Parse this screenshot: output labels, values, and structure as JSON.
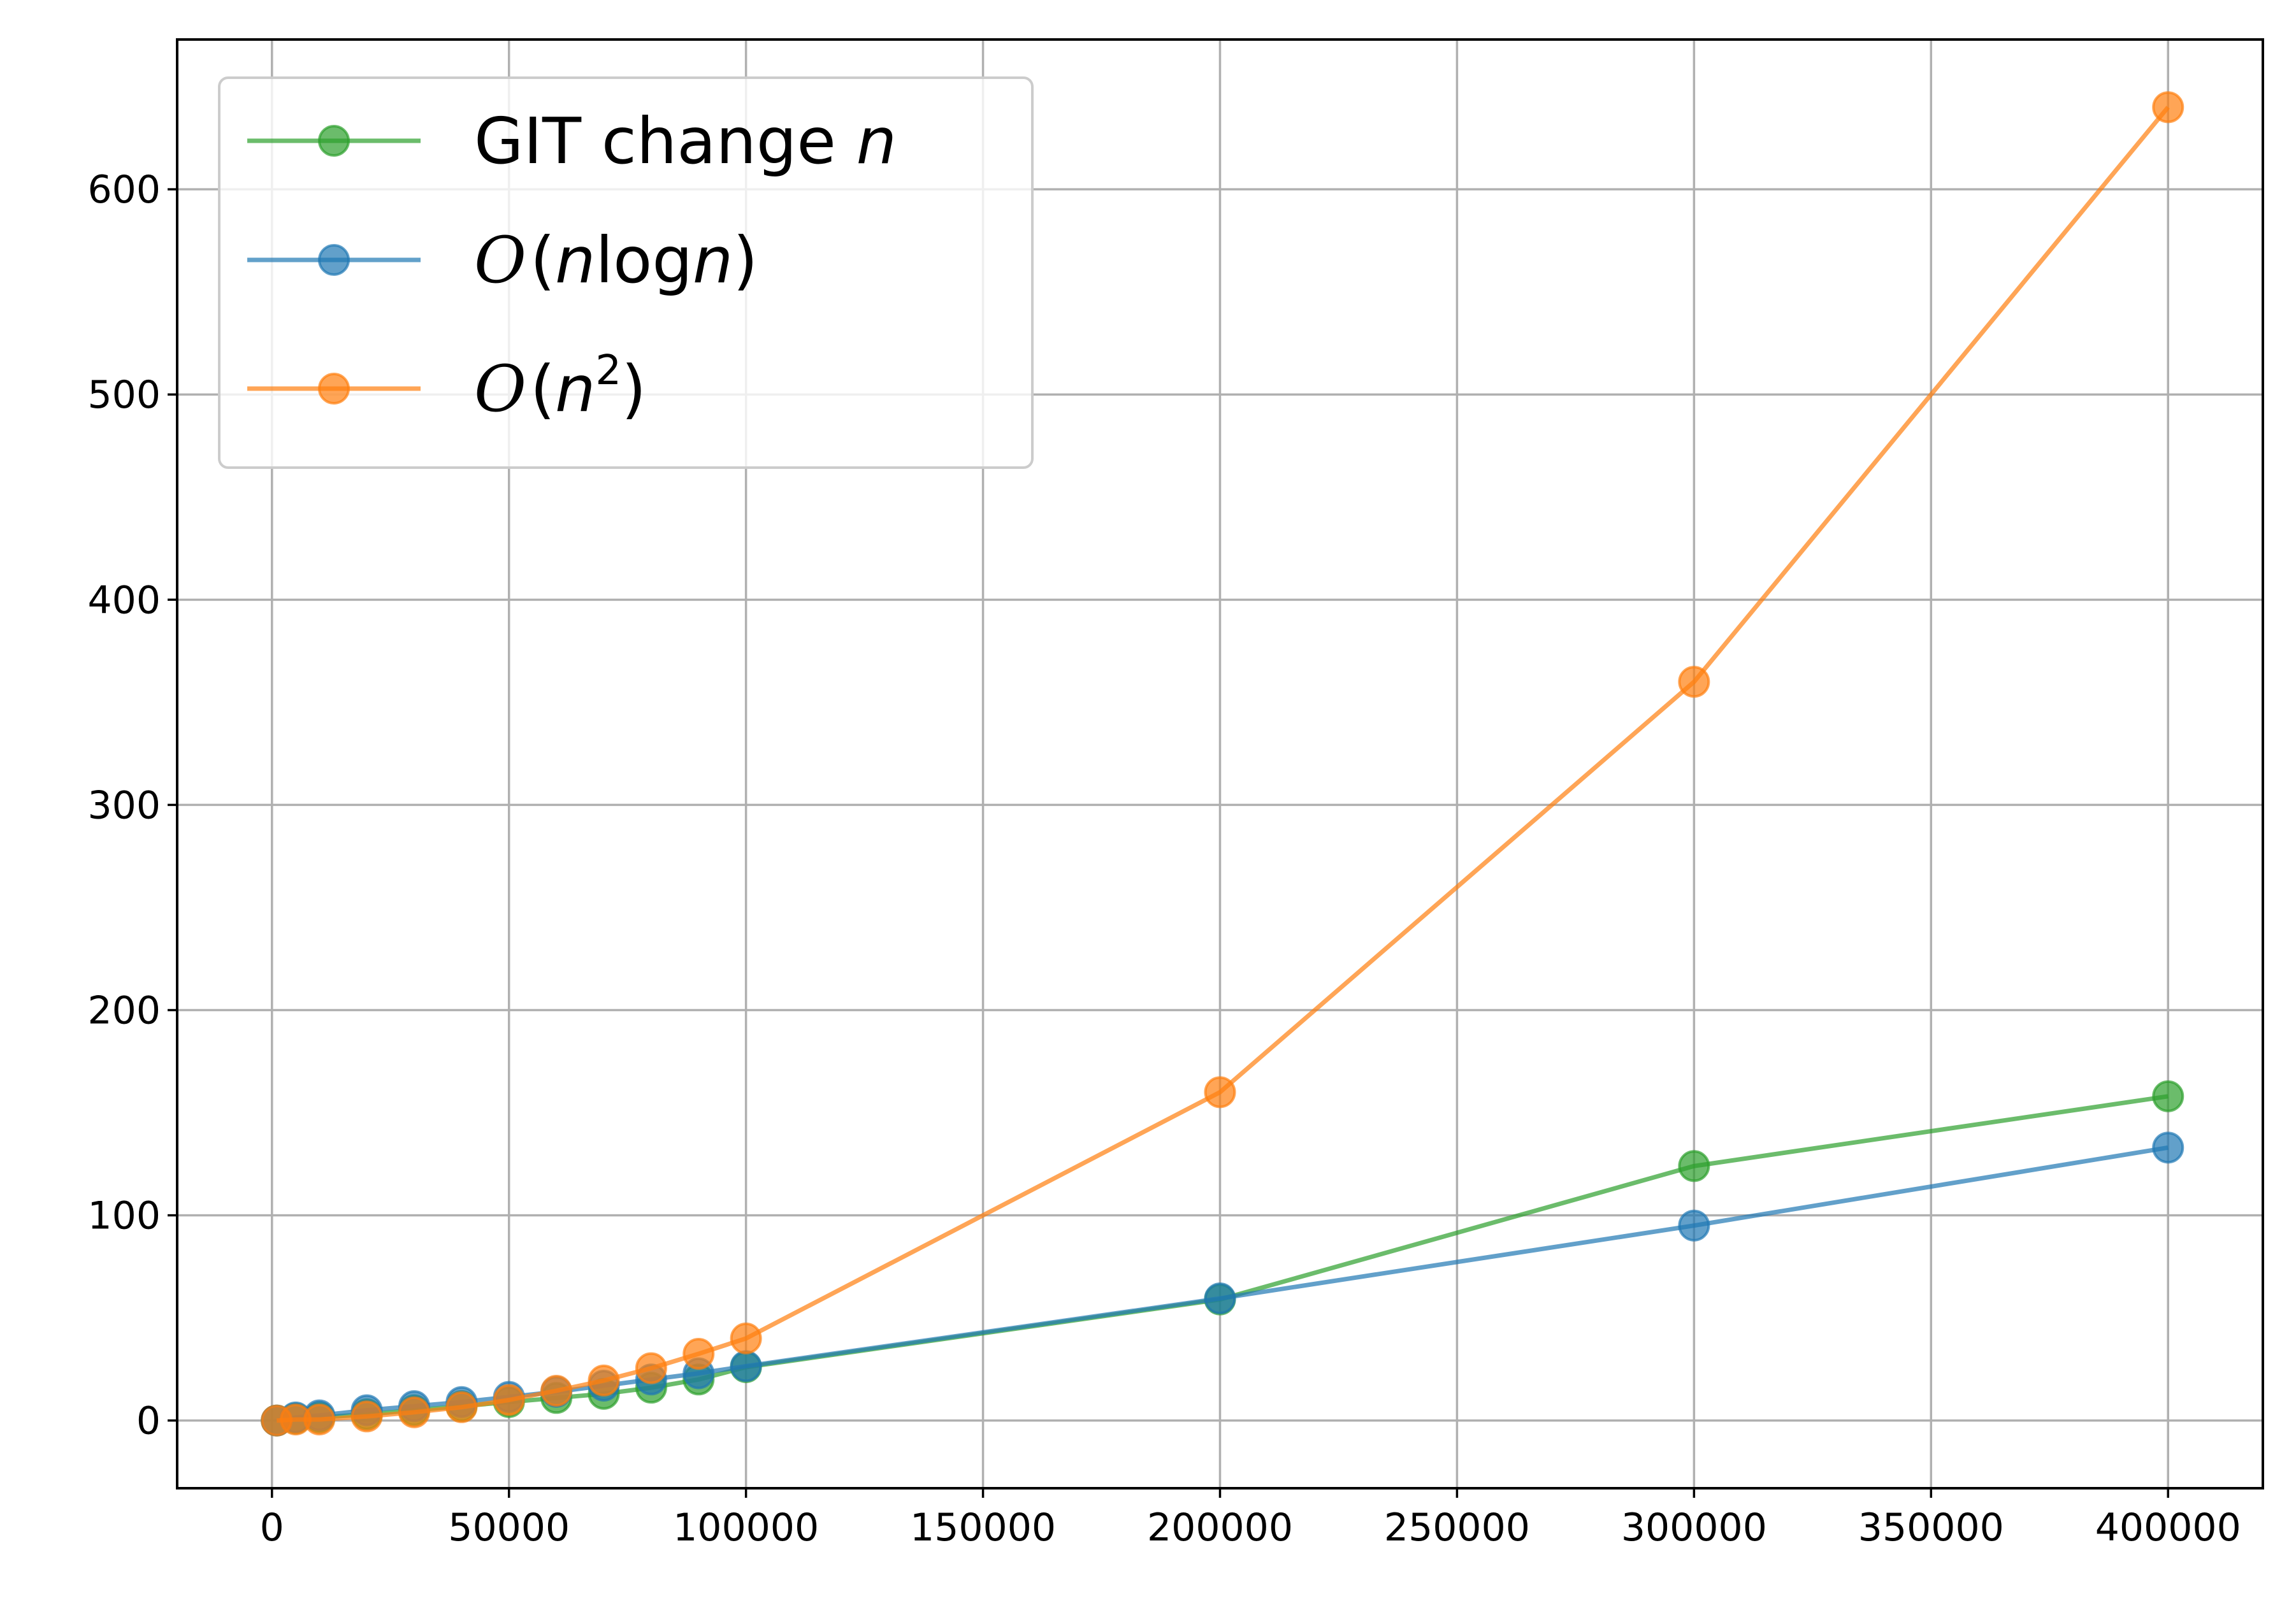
{
  "chart_data": {
    "type": "line",
    "title": "",
    "xlabel": "",
    "ylabel": "",
    "xlim": [
      -20000,
      420000
    ],
    "ylim": [
      -33,
      673
    ],
    "xticks": [
      0,
      50000,
      100000,
      150000,
      200000,
      250000,
      300000,
      350000,
      400000
    ],
    "yticks": [
      0,
      100,
      200,
      300,
      400,
      500,
      600
    ],
    "grid": true,
    "legend_position": "top-left",
    "series": [
      {
        "name": "GIT change n",
        "legend": {
          "prefix": "GIT change ",
          "var": "n",
          "suffix": ""
        },
        "color": "#2ca02c",
        "x": [
          1000,
          5000,
          10000,
          20000,
          30000,
          40000,
          50000,
          60000,
          70000,
          80000,
          90000,
          100000,
          200000,
          300000,
          400000
        ],
        "y": [
          0,
          1,
          1.5,
          3,
          5,
          7,
          9,
          11,
          13,
          16,
          20,
          26,
          59,
          124,
          158
        ]
      },
      {
        "name": "O(nlogn)",
        "legend": {
          "script": "O",
          "open": "(",
          "var": "n",
          "mid": "log",
          "var2": "n",
          "close": ")"
        },
        "color": "#1f77b4",
        "x": [
          1000,
          5000,
          10000,
          20000,
          30000,
          40000,
          50000,
          60000,
          70000,
          80000,
          90000,
          100000,
          200000,
          300000,
          400000
        ],
        "y": [
          0,
          1.5,
          2.5,
          5,
          7,
          9,
          11.5,
          14,
          17,
          20,
          23,
          26.5,
          59.5,
          95,
          133
        ]
      },
      {
        "name": "O(n^2)",
        "legend": {
          "script": "O",
          "open": "(",
          "var": "n",
          "sup": "2",
          "close": ")"
        },
        "color": "#ff7f0e",
        "x": [
          1000,
          5000,
          10000,
          20000,
          30000,
          40000,
          50000,
          60000,
          70000,
          80000,
          90000,
          100000,
          200000,
          300000,
          400000
        ],
        "y": [
          0,
          0.5,
          0.5,
          2,
          4,
          6.5,
          10,
          14.5,
          19.5,
          25.5,
          32.5,
          40,
          160,
          360,
          640
        ]
      }
    ]
  }
}
